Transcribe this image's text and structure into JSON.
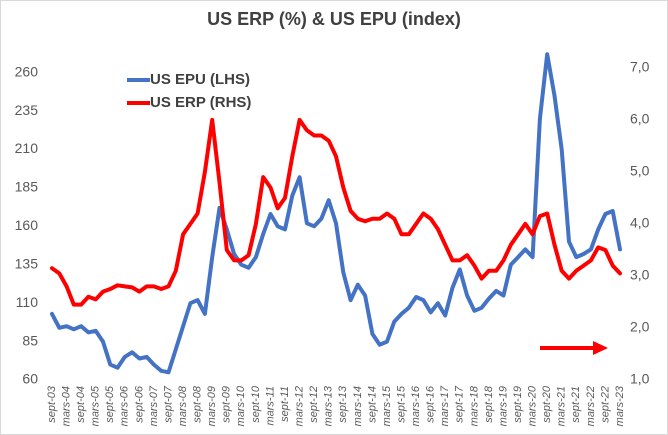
{
  "chart_data": {
    "type": "line",
    "title": "US ERP (%) & US EPU (index)",
    "categories": [
      "sept-03",
      null,
      "mars-04",
      null,
      "sept-04",
      null,
      "mars-05",
      null,
      "sept-05",
      null,
      "mars-06",
      null,
      "sept-06",
      null,
      "mars-07",
      null,
      "sept-07",
      null,
      "mars-08",
      null,
      "sept-08",
      null,
      "mars-09",
      null,
      "sept-09",
      null,
      "mars-10",
      null,
      "sept-10",
      null,
      "mars-11",
      null,
      "sept-11",
      null,
      "mars-12",
      null,
      "sept-12",
      null,
      "mars-13",
      null,
      "sept-13",
      null,
      "mars-14",
      null,
      "sept-14",
      null,
      "mars-15",
      null,
      "sept-15",
      null,
      "mars-16",
      null,
      "sept-16",
      null,
      "mars-17",
      null,
      "sept-17",
      null,
      "mars-18",
      null,
      "sept-18",
      null,
      "mars-19",
      null,
      "sept-19",
      null,
      "mars-20",
      null,
      "sept-20",
      null,
      "mars-21",
      null,
      "sept-21",
      null,
      "mars-22",
      null,
      "sept-22",
      null,
      "mars-23"
    ],
    "series": [
      {
        "name": "US EPU (LHS)",
        "color": "#4472c4",
        "axis": "y",
        "values": [
          103,
          94,
          95,
          93,
          95,
          91,
          92,
          85,
          70,
          68,
          75,
          78,
          74,
          75,
          70,
          66,
          65,
          80,
          95,
          110,
          112,
          103,
          140,
          172,
          158,
          142,
          135,
          133,
          140,
          155,
          168,
          160,
          158,
          180,
          192,
          162,
          160,
          165,
          177,
          162,
          130,
          112,
          122,
          115,
          90,
          83,
          85,
          98,
          103,
          107,
          114,
          112,
          104,
          110,
          102,
          120,
          132,
          115,
          105,
          107,
          113,
          118,
          115,
          135,
          140,
          145,
          140,
          230,
          272,
          245,
          210,
          150,
          140,
          142,
          145,
          158,
          168,
          170,
          145
        ]
      },
      {
        "name": "US ERP (RHS)",
        "color": "#ff0000",
        "axis": "y2",
        "values": [
          3.15,
          3.05,
          2.8,
          2.45,
          2.45,
          2.6,
          2.55,
          2.7,
          2.75,
          2.82,
          2.8,
          2.78,
          2.7,
          2.8,
          2.8,
          2.75,
          2.8,
          3.1,
          3.8,
          4.0,
          4.2,
          5.0,
          6.0,
          4.8,
          3.5,
          3.3,
          3.3,
          3.4,
          4.0,
          4.9,
          4.7,
          4.3,
          4.5,
          5.3,
          6.0,
          5.8,
          5.7,
          5.7,
          5.6,
          5.3,
          4.7,
          4.25,
          4.1,
          4.05,
          4.1,
          4.1,
          4.2,
          4.1,
          3.8,
          3.8,
          4.0,
          4.2,
          4.1,
          3.9,
          3.6,
          3.3,
          3.3,
          3.4,
          3.2,
          2.95,
          3.1,
          3.1,
          3.3,
          3.6,
          3.8,
          4.0,
          3.8,
          4.15,
          4.2,
          3.6,
          3.1,
          2.95,
          3.1,
          3.2,
          3.3,
          3.55,
          3.5,
          3.2,
          3.05
        ]
      }
    ],
    "ylim": [
      60,
      278
    ],
    "yticks": [
      60,
      85,
      110,
      135,
      160,
      185,
      210,
      235,
      260
    ],
    "y2lim": [
      1.0,
      7.44
    ],
    "y2ticks": [
      {
        "value": 1,
        "label": "1,0"
      },
      {
        "value": 2,
        "label": "2,0"
      },
      {
        "value": 3,
        "label": "3,0"
      },
      {
        "value": 4,
        "label": "4,0"
      },
      {
        "value": 5,
        "label": "5,0"
      },
      {
        "value": 6,
        "label": "6,0"
      },
      {
        "value": 7,
        "label": "7,0"
      }
    ],
    "grid": false,
    "legend": "top-left"
  }
}
